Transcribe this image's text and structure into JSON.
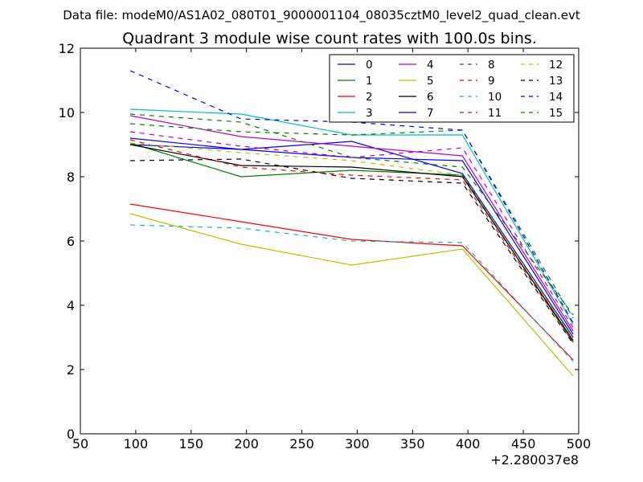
{
  "figure": {
    "suptitle": "Data file: modeM0/AS1A02_080T01_9000001104_08035cztM0_level2_quad_clean.evt"
  },
  "chart_data": {
    "type": "line",
    "title": "Quadrant 3 module wise count rates with 100.0s bins.",
    "xlabel": "",
    "ylabel": "",
    "x_offset_label": "+2.280037e8",
    "xlim": [
      50,
      500
    ],
    "ylim": [
      0,
      12
    ],
    "xticks": [
      50,
      100,
      150,
      200,
      250,
      300,
      350,
      400,
      450,
      500
    ],
    "yticks": [
      0,
      2,
      4,
      6,
      8,
      10,
      12
    ],
    "x": [
      95,
      195,
      295,
      395,
      495
    ],
    "legend_position": "top-right",
    "series": [
      {
        "name": "0",
        "color": "#0000ff",
        "dash": "solid",
        "values": [
          9.0,
          8.85,
          9.1,
          8.1,
          3.0
        ]
      },
      {
        "name": "1",
        "color": "#008000",
        "dash": "solid",
        "values": [
          9.05,
          8.0,
          8.2,
          8.05,
          2.85
        ]
      },
      {
        "name": "2",
        "color": "#ff0000",
        "dash": "solid",
        "values": [
          7.15,
          6.6,
          6.05,
          5.85,
          2.3
        ]
      },
      {
        "name": "3",
        "color": "#00bfbf",
        "dash": "solid",
        "values": [
          10.1,
          9.95,
          9.3,
          9.3,
          3.4
        ]
      },
      {
        "name": "4",
        "color": "#bf00bf",
        "dash": "solid",
        "values": [
          9.9,
          9.25,
          8.95,
          8.65,
          3.2
        ]
      },
      {
        "name": "5",
        "color": "#bfbf00",
        "dash": "solid",
        "values": [
          6.85,
          5.9,
          5.25,
          5.75,
          1.8
        ]
      },
      {
        "name": "6",
        "color": "#000000",
        "dash": "solid",
        "values": [
          9.0,
          8.35,
          8.3,
          8.0,
          2.9
        ]
      },
      {
        "name": "7",
        "color": "#0000ff",
        "dash": "solid",
        "values": [
          9.2,
          8.85,
          8.6,
          8.5,
          3.1
        ]
      },
      {
        "name": "8",
        "color": "#008000",
        "dash": "dashed",
        "values": [
          9.65,
          9.4,
          9.3,
          9.45,
          3.6
        ]
      },
      {
        "name": "9",
        "color": "#ff0000",
        "dash": "dashed",
        "values": [
          9.15,
          8.3,
          8.05,
          7.9,
          2.85
        ]
      },
      {
        "name": "10",
        "color": "#00bfbf",
        "dash": "dashed",
        "values": [
          6.5,
          6.4,
          6.0,
          5.95,
          2.25
        ]
      },
      {
        "name": "11",
        "color": "#bf00bf",
        "dash": "dashed",
        "values": [
          9.4,
          8.95,
          8.6,
          8.9,
          3.3
        ]
      },
      {
        "name": "12",
        "color": "#bfbf00",
        "dash": "dashed",
        "values": [
          9.05,
          8.75,
          8.5,
          8.05,
          2.95
        ]
      },
      {
        "name": "13",
        "color": "#000000",
        "dash": "dashed",
        "values": [
          8.5,
          8.55,
          7.95,
          7.8,
          2.8
        ]
      },
      {
        "name": "14",
        "color": "#0000ff",
        "dash": "dashed",
        "values": [
          11.3,
          9.8,
          9.7,
          9.45,
          3.45
        ]
      },
      {
        "name": "15",
        "color": "#008000",
        "dash": "dashed",
        "values": [
          9.95,
          9.7,
          8.6,
          8.3,
          3.7
        ]
      }
    ]
  }
}
